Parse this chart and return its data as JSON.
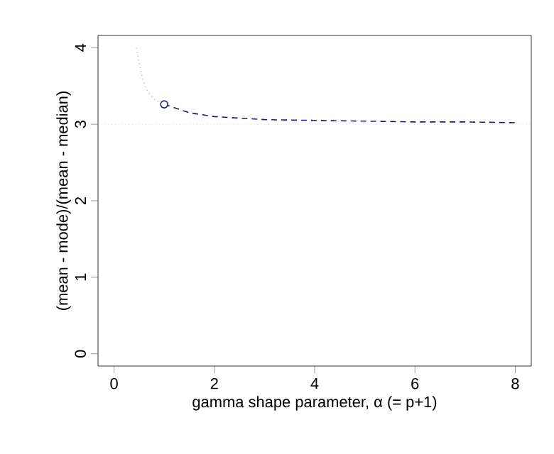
{
  "chart_data": {
    "type": "line",
    "xlabel": "gamma shape parameter, α (= p+1)",
    "ylabel": "(mean - mode)/(mean - median)",
    "xlim": [
      -0.32,
      8.32
    ],
    "ylim": [
      -0.16,
      4.16
    ],
    "xticks": [
      0,
      2,
      4,
      6,
      8
    ],
    "yticks": [
      0,
      1,
      2,
      3,
      4
    ],
    "series": [
      {
        "color": "#c8c8c8",
        "line_style": "dotted",
        "marker": "none",
        "x": [
          0.45,
          0.5,
          0.55,
          0.6,
          0.65,
          0.7,
          0.8,
          0.9,
          1.0
        ],
        "values": [
          4.0,
          3.8,
          3.65,
          3.53,
          3.45,
          3.4,
          3.33,
          3.29,
          3.26
        ]
      },
      {
        "color": "#1a1a80",
        "line_style": "dashed",
        "marker": "none",
        "x": [
          1.0,
          1.5,
          2.0,
          2.5,
          3.0,
          4.0,
          5.0,
          6.0,
          7.0,
          8.0
        ],
        "values": [
          3.26,
          3.15,
          3.1,
          3.08,
          3.06,
          3.05,
          3.04,
          3.03,
          3.03,
          3.02
        ]
      },
      {
        "type": "scatter",
        "color": "#1a1a80",
        "marker": "circle",
        "x": [
          1.0
        ],
        "values": [
          3.26
        ]
      }
    ],
    "ref_lines": [
      {
        "axis": "y",
        "value": 3,
        "color": "#c8c8c8",
        "line_style": "dotted"
      }
    ]
  }
}
